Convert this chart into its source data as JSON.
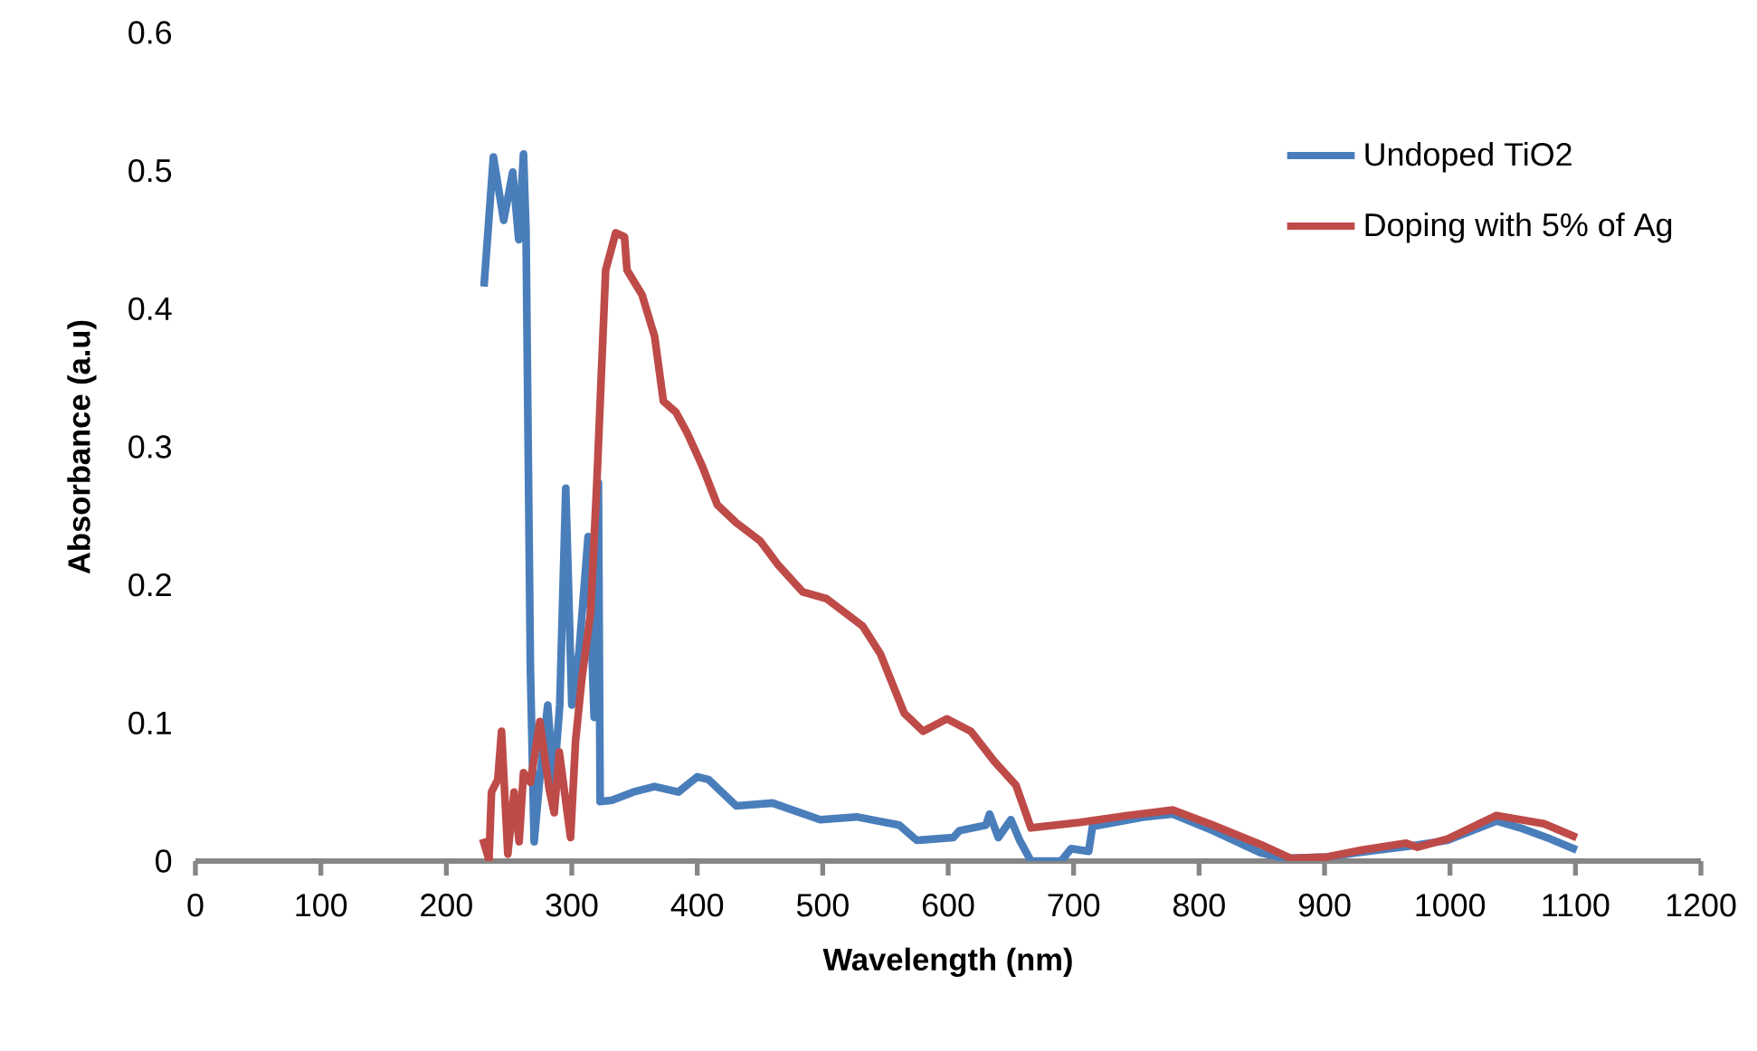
{
  "chart_data": {
    "type": "line",
    "xlabel": "Wavelength (nm)",
    "ylabel": "Absorbance (a.u)",
    "xlim": [
      0,
      1200
    ],
    "ylim": [
      0,
      0.6
    ],
    "xticks": [
      0,
      100,
      200,
      300,
      400,
      500,
      600,
      700,
      800,
      900,
      1000,
      1100,
      1200
    ],
    "yticks": [
      0,
      0.1,
      0.2,
      0.3,
      0.4,
      0.5,
      0.6
    ],
    "grid": false,
    "legend": "top right",
    "marker": "none",
    "line_style": "solid",
    "series": [
      {
        "name": "Undoped TiO2",
        "color": "#4a7ebb",
        "x": [
          230,
          237.5,
          245.7,
          252.9,
          257.7,
          261.5,
          263.5,
          267,
          270,
          274.5,
          280.8,
          285.6,
          290.4,
          295.2,
          300,
          305.8,
          313,
          317.8,
          321.2,
          322.6,
          332,
          349,
          366,
          385,
          400,
          409,
          431,
          460,
          498,
          527,
          561,
          575,
          604,
          609,
          630,
          633,
          640,
          650,
          657,
          666,
          690,
          698,
          712,
          715,
          757,
          779,
          811,
          849,
          868,
          902,
          926,
          969,
          998,
          1037,
          1056,
          1080,
          1101
        ],
        "values": [
          0.416,
          0.51,
          0.464,
          0.499,
          0.45,
          0.512,
          0.457,
          0.139,
          0.014,
          0.06,
          0.113,
          0.056,
          0.113,
          0.27,
          0.113,
          0.152,
          0.235,
          0.104,
          0.274,
          0.043,
          0.044,
          0.05,
          0.054,
          0.05,
          0.061,
          0.059,
          0.04,
          0.042,
          0.03,
          0.032,
          0.026,
          0.015,
          0.017,
          0.022,
          0.026,
          0.034,
          0.017,
          0.03,
          0.015,
          0,
          0,
          0.009,
          0.007,
          0.025,
          0.032,
          0.034,
          0.022,
          0.006,
          0.002,
          0.003,
          0.006,
          0.011,
          0.015,
          0.029,
          0.024,
          0.016,
          0.008
        ]
      },
      {
        "name": "Doping with 5% of Ag",
        "color": "#be4b48",
        "x": [
          229,
          234,
          236,
          241,
          244,
          249,
          254,
          258,
          261.5,
          267,
          274.5,
          282,
          286,
          290,
          299,
          303,
          308,
          315,
          320,
          327,
          335,
          342,
          344,
          356,
          366,
          373,
          383,
          392,
          404,
          416,
          431,
          450,
          464,
          484,
          503,
          532,
          546,
          565,
          580,
          599,
          618,
          637,
          654,
          666,
          705,
          743,
          779,
          811,
          849,
          873,
          902,
          930,
          965,
          974,
          998,
          1037,
          1075,
          1101
        ],
        "values": [
          0.016,
          0.001,
          0.05,
          0.059,
          0.094,
          0.005,
          0.05,
          0.014,
          0.064,
          0.057,
          0.101,
          0.052,
          0.035,
          0.079,
          0.017,
          0.087,
          0.132,
          0.18,
          0.275,
          0.428,
          0.455,
          0.452,
          0.428,
          0.41,
          0.38,
          0.333,
          0.325,
          0.31,
          0.286,
          0.258,
          0.245,
          0.232,
          0.215,
          0.195,
          0.19,
          0.17,
          0.15,
          0.107,
          0.094,
          0.103,
          0.094,
          0.072,
          0.055,
          0.024,
          0.028,
          0.033,
          0.037,
          0.026,
          0.012,
          0.002,
          0.003,
          0.008,
          0.013,
          0.01,
          0.016,
          0.033,
          0.027,
          0.017
        ]
      }
    ]
  }
}
